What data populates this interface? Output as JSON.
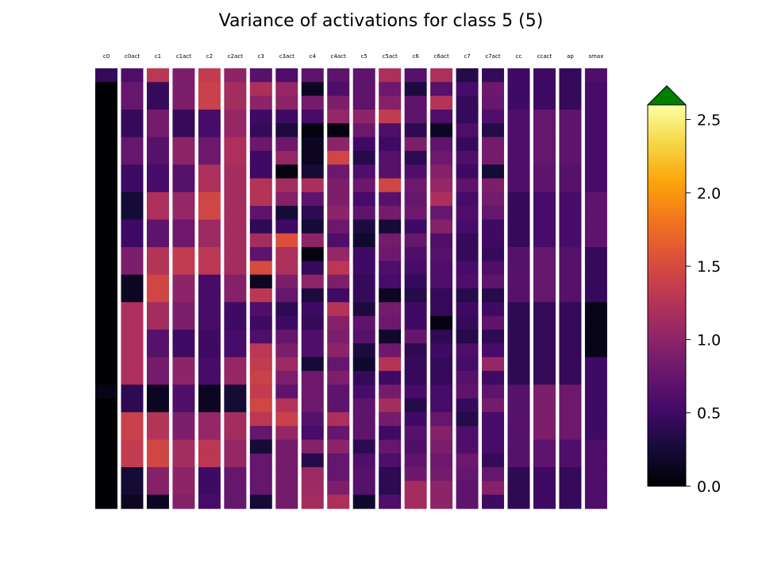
{
  "chart_data": {
    "type": "heatmap",
    "title": "Variance of activations for class 5 (5)",
    "columns": [
      {
        "label": "c0",
        "values": [
          0.45,
          0.0,
          0.0,
          0.0,
          0.0,
          0.0,
          0.0,
          0.0,
          0.0,
          0.0,
          0.0,
          0.0,
          0.0,
          0.0,
          0.0,
          0.0,
          0.0,
          0.0,
          0.0,
          0.0,
          0.0,
          0.0,
          0.0,
          0.1,
          0.0,
          0.0,
          0.0,
          0.0,
          0.0,
          0.0,
          0.0,
          0.0
        ]
      },
      {
        "label": "c0act",
        "values": [
          0.6,
          0.75,
          0.75,
          0.45,
          0.45,
          0.75,
          0.75,
          0.5,
          0.5,
          0.25,
          0.25,
          0.5,
          0.5,
          0.9,
          0.9,
          0.15,
          0.15,
          1.2,
          1.2,
          1.2,
          1.2,
          1.2,
          1.2,
          0.4,
          0.4,
          1.4,
          1.4,
          1.35,
          1.35,
          0.25,
          0.25,
          0.15
        ]
      },
      {
        "label": "c1",
        "values": [
          1.3,
          0.45,
          0.45,
          0.85,
          0.85,
          0.65,
          0.65,
          0.55,
          0.55,
          1.2,
          1.2,
          0.7,
          0.7,
          1.25,
          1.25,
          1.45,
          1.45,
          1.15,
          1.15,
          0.65,
          0.65,
          0.85,
          0.85,
          0.15,
          0.15,
          1.25,
          1.25,
          1.45,
          1.45,
          0.95,
          0.95,
          0.15
        ]
      },
      {
        "label": "c1act",
        "values": [
          0.9,
          0.9,
          0.9,
          0.45,
          0.45,
          1.0,
          1.0,
          0.65,
          0.65,
          1.05,
          1.05,
          0.8,
          0.8,
          1.35,
          1.35,
          1.0,
          1.0,
          0.9,
          0.9,
          0.5,
          0.5,
          1.0,
          1.0,
          0.6,
          0.6,
          0.9,
          0.9,
          1.15,
          1.15,
          1.0,
          1.0,
          0.95
        ]
      },
      {
        "label": "c2",
        "values": [
          1.35,
          1.4,
          1.4,
          0.55,
          0.55,
          0.8,
          0.8,
          1.2,
          1.2,
          1.45,
          1.45,
          1.1,
          1.1,
          1.3,
          1.3,
          0.55,
          0.55,
          0.55,
          0.55,
          0.5,
          0.5,
          0.55,
          0.55,
          0.15,
          0.15,
          1.05,
          1.05,
          1.3,
          1.3,
          0.5,
          0.5,
          0.55
        ]
      },
      {
        "label": "c2act",
        "values": [
          1.0,
          1.15,
          1.15,
          1.05,
          1.05,
          1.2,
          1.2,
          1.15,
          1.15,
          1.15,
          1.15,
          1.15,
          1.15,
          1.15,
          1.15,
          0.95,
          0.95,
          0.5,
          0.5,
          0.55,
          0.55,
          1.05,
          1.05,
          0.25,
          0.25,
          1.15,
          1.15,
          1.05,
          1.05,
          0.75,
          0.75,
          0.75
        ]
      },
      {
        "label": "c3",
        "values": [
          0.65,
          1.2,
          1.0,
          0.5,
          0.45,
          0.8,
          0.5,
          0.5,
          1.25,
          1.25,
          0.7,
          0.4,
          1.15,
          0.7,
          1.5,
          0.15,
          1.3,
          0.6,
          0.5,
          0.6,
          1.3,
          1.35,
          1.4,
          1.35,
          1.45,
          1.3,
          0.75,
          0.25,
          0.75,
          0.75,
          0.75,
          0.25
        ]
      },
      {
        "label": "c3act",
        "values": [
          0.6,
          1.05,
          1.0,
          0.5,
          0.3,
          0.8,
          1.05,
          0.05,
          1.15,
          0.95,
          0.25,
          0.5,
          1.55,
          1.2,
          1.2,
          0.9,
          0.75,
          0.4,
          0.5,
          0.75,
          0.9,
          1.1,
          0.9,
          0.7,
          1.25,
          1.4,
          1.05,
          0.85,
          0.85,
          0.85,
          0.85,
          0.85
        ]
      },
      {
        "label": "c4",
        "values": [
          0.7,
          0.15,
          0.85,
          0.55,
          0.05,
          0.15,
          0.15,
          0.25,
          1.2,
          0.7,
          0.4,
          0.25,
          1.0,
          0.05,
          0.45,
          1.0,
          0.3,
          0.5,
          0.45,
          0.6,
          0.6,
          0.25,
          0.8,
          0.8,
          0.8,
          0.65,
          0.55,
          0.95,
          0.35,
          1.1,
          1.1,
          1.15
        ]
      },
      {
        "label": "c4act",
        "values": [
          0.7,
          0.6,
          0.9,
          1.05,
          0.05,
          1.0,
          1.45,
          0.8,
          0.9,
          0.9,
          1.0,
          0.8,
          0.6,
          1.05,
          1.3,
          0.9,
          0.5,
          1.25,
          0.95,
          0.9,
          1.0,
          0.75,
          0.9,
          0.7,
          0.7,
          1.2,
          0.75,
          1.0,
          0.75,
          0.75,
          0.9,
          1.2
        ]
      },
      {
        "label": "c5",
        "values": [
          0.7,
          0.7,
          0.7,
          1.0,
          0.8,
          0.5,
          0.35,
          0.6,
          0.8,
          0.55,
          0.7,
          0.3,
          0.2,
          0.5,
          0.5,
          0.45,
          0.45,
          0.3,
          0.7,
          0.65,
          0.3,
          0.2,
          0.45,
          0.55,
          0.7,
          0.7,
          0.7,
          0.4,
          0.6,
          0.65,
          0.65,
          0.2
        ]
      },
      {
        "label": "c5act",
        "values": [
          1.2,
          0.8,
          0.95,
          1.35,
          0.6,
          0.5,
          0.65,
          0.65,
          1.45,
          0.65,
          0.85,
          0.25,
          0.85,
          0.8,
          0.6,
          0.55,
          0.15,
          0.85,
          0.8,
          0.2,
          0.8,
          1.25,
          0.5,
          0.85,
          1.15,
          0.85,
          0.5,
          0.75,
          0.6,
          0.4,
          0.4,
          0.6
        ]
      },
      {
        "label": "c6",
        "values": [
          0.65,
          0.3,
          0.7,
          0.7,
          0.4,
          0.9,
          0.4,
          0.6,
          0.8,
          0.75,
          0.8,
          0.5,
          0.75,
          0.6,
          0.55,
          0.45,
          0.35,
          0.5,
          0.5,
          0.75,
          0.4,
          0.45,
          0.45,
          0.55,
          0.35,
          0.5,
          0.65,
          0.6,
          0.7,
          0.8,
          1.15,
          1.15
        ]
      },
      {
        "label": "c6act",
        "values": [
          1.2,
          0.65,
          1.25,
          0.6,
          0.15,
          0.7,
          0.8,
          0.95,
          1.05,
          1.2,
          0.75,
          0.95,
          0.6,
          0.65,
          0.6,
          0.6,
          0.45,
          0.45,
          0.05,
          0.4,
          0.5,
          0.45,
          0.45,
          0.55,
          0.55,
          0.75,
          0.95,
          0.9,
          0.8,
          0.85,
          1.0,
          1.0
        ]
      },
      {
        "label": "c7",
        "values": [
          0.35,
          0.55,
          0.45,
          0.45,
          0.6,
          0.45,
          0.6,
          0.5,
          0.7,
          0.55,
          0.6,
          0.55,
          0.45,
          0.45,
          0.55,
          0.6,
          0.35,
          0.5,
          0.45,
          0.35,
          0.6,
          0.55,
          0.65,
          0.7,
          0.45,
          0.35,
          0.6,
          0.6,
          0.8,
          0.75,
          0.7,
          0.7
        ]
      },
      {
        "label": "c7act",
        "values": [
          0.45,
          0.8,
          0.75,
          0.6,
          0.35,
          0.85,
          0.85,
          0.25,
          0.9,
          0.85,
          0.75,
          0.5,
          0.5,
          0.45,
          0.6,
          0.7,
          0.35,
          0.5,
          0.7,
          0.4,
          0.55,
          1.05,
          0.5,
          0.7,
          0.85,
          0.55,
          0.55,
          0.55,
          0.45,
          0.75,
          0.95,
          0.5
        ]
      },
      {
        "label": "cc",
        "values": [
          0.5,
          0.5,
          0.5,
          0.6,
          0.6,
          0.6,
          0.6,
          0.6,
          0.6,
          0.45,
          0.45,
          0.45,
          0.45,
          0.65,
          0.65,
          0.65,
          0.65,
          0.4,
          0.4,
          0.4,
          0.4,
          0.4,
          0.4,
          0.65,
          0.65,
          0.65,
          0.65,
          0.65,
          0.65,
          0.4,
          0.4,
          0.4
        ]
      },
      {
        "label": "ccact",
        "values": [
          0.5,
          0.5,
          0.5,
          0.75,
          0.75,
          0.75,
          0.75,
          0.7,
          0.7,
          0.55,
          0.55,
          0.55,
          0.55,
          0.75,
          0.75,
          0.75,
          0.75,
          0.45,
          0.45,
          0.45,
          0.45,
          0.45,
          0.45,
          0.9,
          0.9,
          0.9,
          0.9,
          0.7,
          0.7,
          0.5,
          0.5,
          0.5
        ]
      },
      {
        "label": "ap",
        "values": [
          0.45,
          0.45,
          0.45,
          0.7,
          0.7,
          0.7,
          0.7,
          0.65,
          0.65,
          0.55,
          0.55,
          0.55,
          0.55,
          0.65,
          0.65,
          0.65,
          0.65,
          0.45,
          0.45,
          0.45,
          0.45,
          0.45,
          0.45,
          0.8,
          0.8,
          0.8,
          0.8,
          0.6,
          0.6,
          0.45,
          0.45,
          0.45
        ]
      },
      {
        "label": "smax",
        "values": [
          0.6,
          0.55,
          0.55,
          0.55,
          0.55,
          0.55,
          0.55,
          0.55,
          0.55,
          0.7,
          0.7,
          0.7,
          0.7,
          0.45,
          0.45,
          0.45,
          0.45,
          0.1,
          0.1,
          0.1,
          0.1,
          0.5,
          0.5,
          0.5,
          0.5,
          0.5,
          0.5,
          0.6,
          0.6,
          0.6,
          0.6,
          0.6
        ]
      }
    ],
    "colormap": "inferno",
    "colorbar": {
      "ticks": [
        "0.0",
        "0.5",
        "1.0",
        "1.5",
        "2.0",
        "2.5"
      ],
      "range": [
        0,
        2.6
      ],
      "extend": "max",
      "extend_color": "#008000"
    }
  }
}
